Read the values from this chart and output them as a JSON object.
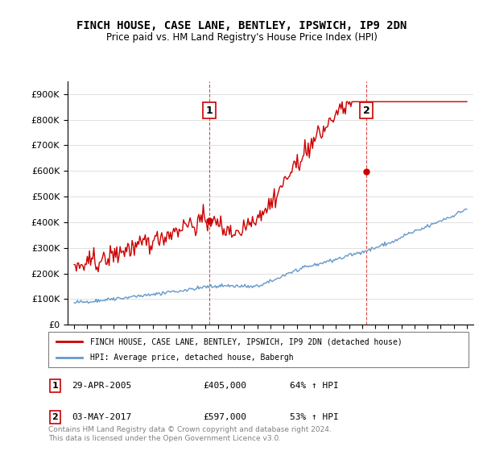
{
  "title": "FINCH HOUSE, CASE LANE, BENTLEY, IPSWICH, IP9 2DN",
  "subtitle": "Price paid vs. HM Land Registry's House Price Index (HPI)",
  "legend_line1": "FINCH HOUSE, CASE LANE, BENTLEY, IPSWICH, IP9 2DN (detached house)",
  "legend_line2": "HPI: Average price, detached house, Babergh",
  "annotation1_label": "1",
  "annotation1_date": "29-APR-2005",
  "annotation1_price": "£405,000",
  "annotation1_hpi": "64% ↑ HPI",
  "annotation2_label": "2",
  "annotation2_date": "03-MAY-2017",
  "annotation2_price": "£597,000",
  "annotation2_hpi": "53% ↑ HPI",
  "footer": "Contains HM Land Registry data © Crown copyright and database right 2024.\nThis data is licensed under the Open Government Licence v3.0.",
  "house_color": "#cc0000",
  "hpi_color": "#6699cc",
  "marker1_x": 2005.33,
  "marker1_y": 405000,
  "marker2_x": 2017.33,
  "marker2_y": 597000,
  "vline1_x": 2005.33,
  "vline2_x": 2017.33,
  "ylim": [
    0,
    950000
  ],
  "xlim": [
    1994.5,
    2025.5
  ],
  "yticks": [
    0,
    100000,
    200000,
    300000,
    400000,
    500000,
    600000,
    700000,
    800000,
    900000
  ],
  "ytick_labels": [
    "£0",
    "£100K",
    "£200K",
    "£300K",
    "£400K",
    "£500K",
    "£600K",
    "£700K",
    "£800K",
    "£900K"
  ],
  "xticks": [
    1995,
    1996,
    1997,
    1998,
    1999,
    2000,
    2001,
    2002,
    2003,
    2004,
    2005,
    2006,
    2007,
    2008,
    2009,
    2010,
    2011,
    2012,
    2013,
    2014,
    2015,
    2016,
    2017,
    2018,
    2019,
    2020,
    2021,
    2022,
    2023,
    2024,
    2025
  ]
}
